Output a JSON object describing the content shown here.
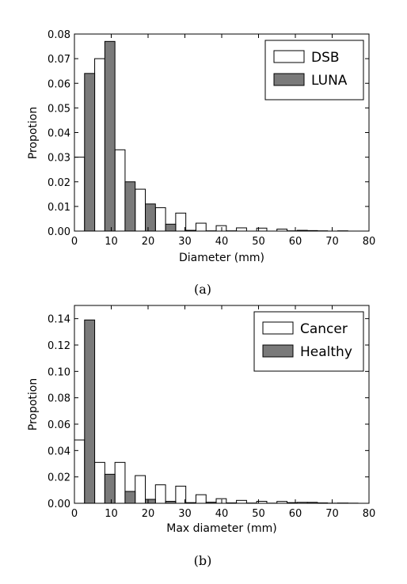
{
  "chart_data": [
    {
      "type": "bar",
      "caption": "(a)",
      "xlabel": "Diameter (mm)",
      "ylabel": "Propotion",
      "xlim": [
        0,
        80
      ],
      "ylim": [
        0,
        0.08
      ],
      "xticks": [
        0,
        10,
        20,
        30,
        40,
        50,
        60,
        70,
        80
      ],
      "xtick_labels": [
        "0",
        "10",
        "20",
        "30",
        "40",
        "50",
        "60",
        "70",
        "80"
      ],
      "yticks": [
        0,
        0.01,
        0.02,
        0.03,
        0.04,
        0.05,
        0.06,
        0.07,
        0.08
      ],
      "ytick_labels": [
        "0.00",
        "0.01",
        "0.02",
        "0.03",
        "0.04",
        "0.05",
        "0.06",
        "0.07",
        "0.08"
      ],
      "bin_width_mm": 5.5,
      "x": [
        0,
        5.5,
        11,
        16.5,
        22,
        27.5,
        33,
        38.5,
        44,
        49.5,
        55,
        60.5,
        66,
        71.5
      ],
      "legend_position": "top-right",
      "grid": false,
      "series": [
        {
          "name": "DSB",
          "color": "#ffffff",
          "values": [
            0.03,
            0.07,
            0.033,
            0.017,
            0.0095,
            0.0073,
            0.0032,
            0.0022,
            0.0013,
            0.0012,
            0.0008,
            0.0003,
            0.0001,
            0.0001
          ]
        },
        {
          "name": "LUNA",
          "color": "#7a7a7a",
          "values": [
            0.064,
            0.077,
            0.02,
            0.011,
            0.0028,
            0.0003,
            0.0001,
            0.0001,
            0,
            0,
            0.0001,
            0.0002,
            0,
            0
          ]
        }
      ]
    },
    {
      "type": "bar",
      "caption": "(b)",
      "xlabel": "Max diameter (mm)",
      "ylabel": "Propotion",
      "xlim": [
        0,
        80
      ],
      "ylim": [
        0,
        0.15
      ],
      "xticks": [
        0,
        10,
        20,
        30,
        40,
        50,
        60,
        70,
        80
      ],
      "xtick_labels": [
        "0",
        "10",
        "20",
        "30",
        "40",
        "50",
        "60",
        "70",
        "80"
      ],
      "yticks": [
        0,
        0.02,
        0.04,
        0.06,
        0.08,
        0.1,
        0.12,
        0.14
      ],
      "ytick_labels": [
        "0.00",
        "0.02",
        "0.04",
        "0.06",
        "0.08",
        "0.10",
        "0.12",
        "0.14"
      ],
      "bin_width_mm": 5.5,
      "x": [
        0,
        5.5,
        11,
        16.5,
        22,
        27.5,
        33,
        38.5,
        44,
        49.5,
        55,
        60.5,
        66,
        71.5
      ],
      "legend_position": "top-right",
      "grid": false,
      "series": [
        {
          "name": "Cancer",
          "color": "#ffffff",
          "values": [
            0.048,
            0.031,
            0.031,
            0.021,
            0.014,
            0.013,
            0.0065,
            0.0035,
            0.0022,
            0.0015,
            0.0014,
            0.0007,
            0.0003,
            0.0002
          ]
        },
        {
          "name": "Healthy",
          "color": "#7a7a7a",
          "values": [
            0.139,
            0.022,
            0.009,
            0.003,
            0.0015,
            0.0005,
            0.0008,
            0.0003,
            0.0002,
            0.0001,
            0.0005,
            0.0007,
            0.0001,
            0.0001
          ]
        }
      ]
    }
  ]
}
